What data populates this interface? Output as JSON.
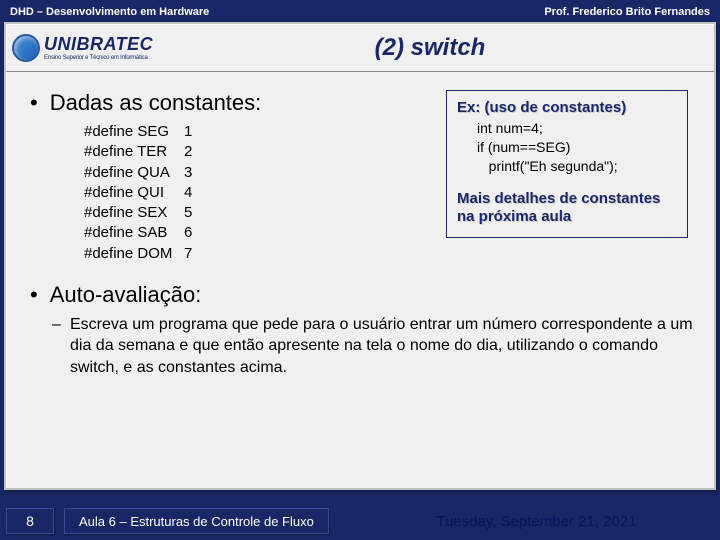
{
  "topbar": {
    "left": "DHD – Desenvolvimento em Hardware",
    "right": "Prof. Frederico Brito Fernandes"
  },
  "logo": {
    "main": "UNIBRATEC",
    "sub": "Ensino Superior e Técnico em Informática"
  },
  "title": "(2) switch",
  "bulletMain": "Dadas as constantes:",
  "defines": [
    {
      "label": "#define SEG",
      "val": "1"
    },
    {
      "label": "#define TER",
      "val": "2"
    },
    {
      "label": "#define QUA",
      "val": "3"
    },
    {
      "label": "#define QUI",
      "val": "4"
    },
    {
      "label": "#define SEX",
      "val": "5"
    },
    {
      "label": "#define SAB",
      "val": "6"
    },
    {
      "label": "#define DOM",
      "val": "7"
    }
  ],
  "example": {
    "title": "Ex: (uso de constantes)",
    "code1": "int num=4;",
    "code2": "if (num==SEG)",
    "code3": "   printf(\"Eh segunda\");",
    "note": "Mais detalhes de constantes na próxima aula"
  },
  "autoTitle": "Auto-avaliação:",
  "autoText": "Escreva um programa que pede para o usuário entrar um número correspondente a um dia da semana e que então apresente na tela o nome do dia, utilizando o comando switch, e as constantes acima.",
  "footer": {
    "page": "8",
    "lesson": "Aula 6 – Estruturas de Controle de Fluxo",
    "date": "Tuesday, September 21, 2021"
  }
}
